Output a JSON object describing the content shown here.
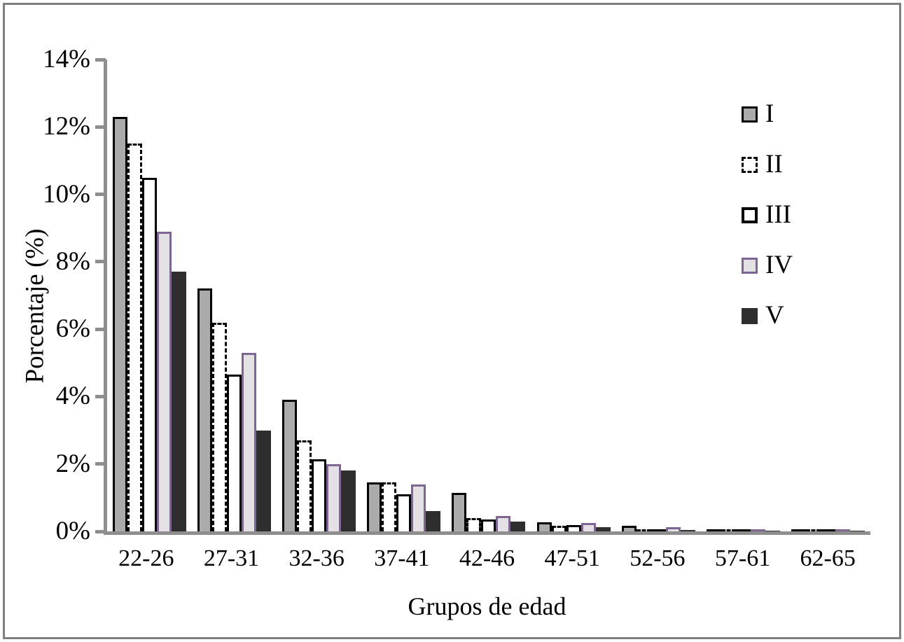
{
  "figure": {
    "ylabel": "Porcentaje (%)",
    "xlabel": "Grupos de edad"
  },
  "chart_data": {
    "type": "bar",
    "title": "",
    "xlabel": "Grupos de edad",
    "ylabel": "Porcentaje (%)",
    "categories": [
      "22-26",
      "27-31",
      "32-36",
      "37-41",
      "42-46",
      "47-51",
      "52-56",
      "57-61",
      "62-65"
    ],
    "series": [
      {
        "name": "I",
        "values": [
          12.3,
          7.2,
          3.9,
          1.45,
          1.15,
          0.28,
          0.16,
          0.05,
          0.04
        ],
        "fill": "#ababab",
        "border_color": "#000000",
        "border_style": "solid",
        "border_width": 3
      },
      {
        "name": "II",
        "values": [
          11.5,
          6.2,
          2.7,
          1.45,
          0.4,
          0.16,
          0.07,
          0.05,
          0.03
        ],
        "fill": "#ffffff",
        "border_color": "#000000",
        "border_style": "dashed",
        "border_width": 3
      },
      {
        "name": "III",
        "values": [
          10.5,
          4.65,
          2.15,
          1.1,
          0.35,
          0.18,
          0.06,
          0.05,
          0.02
        ],
        "fill": "#ffffff",
        "border_color": "#000000",
        "border_style": "solid",
        "border_width": 3
      },
      {
        "name": "IV",
        "values": [
          8.9,
          5.3,
          2.0,
          1.4,
          0.45,
          0.25,
          0.12,
          0.06,
          0.03
        ],
        "fill": "#e3e1e4",
        "border_color": "#7e6693",
        "border_style": "solid",
        "border_width": 3
      },
      {
        "name": "V",
        "values": [
          7.7,
          3.0,
          1.8,
          0.6,
          0.3,
          0.12,
          0.04,
          0.02,
          0.01
        ],
        "fill": "#2e2e2e",
        "border_color": "#2e2e2e",
        "border_style": "none",
        "border_width": 0
      }
    ],
    "y_ticks": [
      "14%",
      "12%",
      "10%",
      "8%",
      "6%",
      "4%",
      "2%",
      "0%"
    ],
    "ylim": [
      0,
      14
    ],
    "grid": false,
    "legend_position": "right"
  },
  "colors": {
    "axis": "#8e8e8e",
    "frame": "#7f7f7f",
    "text": "#000000",
    "background": "#ffffff",
    "series_I_fill": "#ababab",
    "series_IV_border": "#7e6693",
    "series_V_fill": "#2e2e2e"
  }
}
